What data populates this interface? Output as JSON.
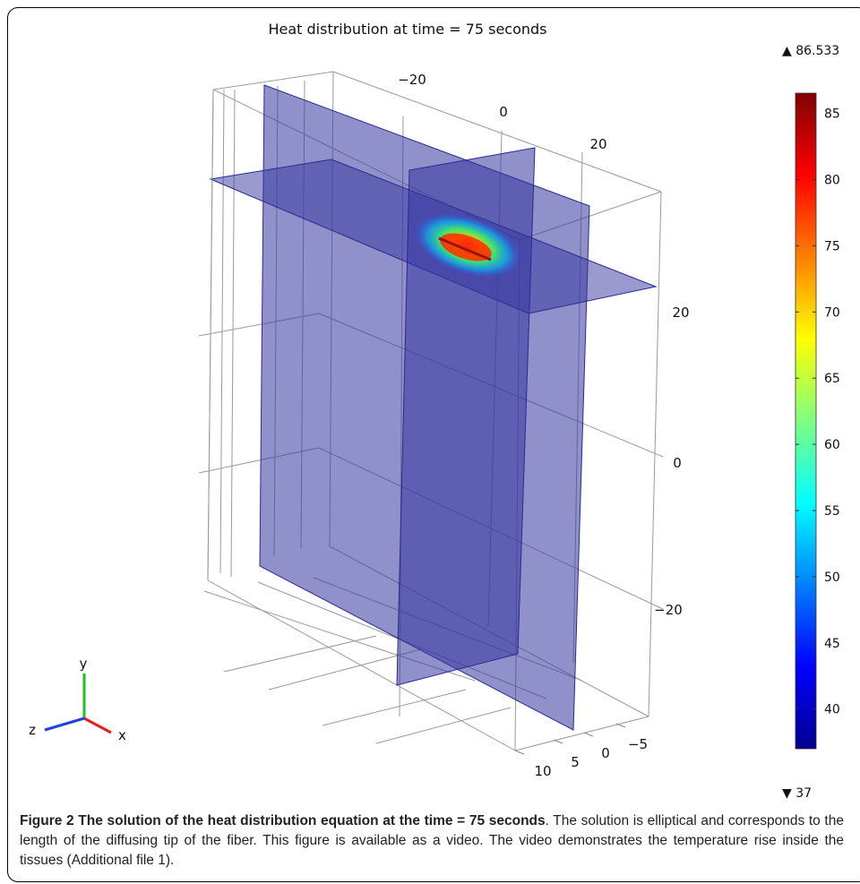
{
  "figure": {
    "plot_title": "Heat distribution at time = 75 seconds",
    "colorbar": {
      "max_label": "▲ 86.533",
      "min_label": "▼ 37",
      "ticks": [
        "85",
        "80",
        "75",
        "70",
        "65",
        "60",
        "55",
        "50",
        "45",
        "40"
      ],
      "tick_values": [
        85,
        80,
        75,
        70,
        65,
        60,
        55,
        50,
        45,
        40
      ],
      "max": 86.533,
      "min": 37,
      "colors": [
        "#00008f",
        "#0000ff",
        "#00ffff",
        "#ffff00",
        "#ff0000",
        "#800000"
      ]
    },
    "axis_labels": {
      "top": [
        "−20",
        "0",
        "20"
      ],
      "right": [
        "20",
        "0",
        "−20"
      ],
      "bottom": [
        "10",
        "5",
        "0",
        "−5"
      ]
    },
    "triad": {
      "x": "x",
      "y": "y",
      "z": "z",
      "x_color": "#e02020",
      "y_color": "#20c020",
      "z_color": "#2040e0"
    },
    "slice_color": "#3535a0"
  },
  "caption": {
    "label": "Figure 2",
    "title": "The solution of the heat distribution equation at the time = 75 seconds",
    "text": ". The solution is elliptical and corresponds to the length of the diffusing tip of the fiber. This figure is available as a video. The video demonstrates the temperature rise inside the tissues (Additional file 1)."
  }
}
